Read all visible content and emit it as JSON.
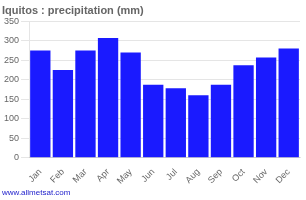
{
  "chart_data": {
    "type": "bar",
    "title": "Iquitos : precipitation (mm)",
    "categories": [
      "Jan",
      "Feb",
      "Mar",
      "Apr",
      "May",
      "Jun",
      "Jul",
      "Aug",
      "Sep",
      "Oct",
      "Nov",
      "Dec"
    ],
    "values": [
      275,
      225,
      275,
      307,
      270,
      187,
      178,
      160,
      187,
      237,
      257,
      280
    ],
    "color": "#1a1aff",
    "ylim": [
      0,
      350
    ],
    "yticks": [
      0,
      50,
      100,
      150,
      200,
      250,
      300,
      350
    ],
    "grid": true,
    "annotations": [
      "www.allmetsat.com"
    ]
  }
}
